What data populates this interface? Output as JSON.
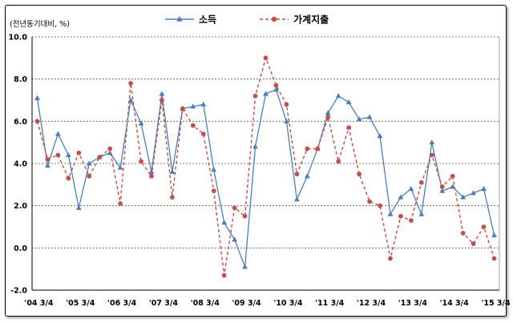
{
  "chart_data": {
    "type": "line",
    "unit_label": "(전년동기대비, %)",
    "ylim": [
      -2.0,
      10.0
    ],
    "y_ticks": [
      "10.0",
      "8.0",
      "6.0",
      "4.0",
      "2.0",
      "0.0",
      "-2.0"
    ],
    "y_tick_values": [
      10,
      8,
      6,
      4,
      2,
      0,
      -2
    ],
    "grid": true,
    "legend_position": "top",
    "x_tick_labels": [
      "'04 3/4",
      "'05 3/4",
      "'06 3/4",
      "'07 3/4",
      "'08 3/4",
      "'09 3/4",
      "'10 3/4",
      "'11 3/4",
      "'12 3/4",
      "'13 3/4",
      "'14 3/4",
      "'15 3/4"
    ],
    "x_tick_indices": [
      0,
      4,
      8,
      12,
      16,
      20,
      24,
      28,
      32,
      36,
      40,
      44
    ],
    "num_points": 45,
    "series": [
      {
        "name": "소득",
        "color": "#4a7ebb",
        "marker": "triangle",
        "line_style": "solid",
        "values": [
          7.1,
          3.9,
          5.4,
          4.4,
          1.9,
          4.0,
          4.3,
          4.5,
          3.8,
          7.0,
          5.9,
          3.6,
          7.3,
          3.6,
          6.6,
          6.7,
          6.8,
          3.7,
          1.2,
          0.4,
          -0.9,
          4.8,
          7.3,
          7.5,
          6.0,
          2.3,
          3.4,
          4.7,
          6.4,
          7.2,
          6.9,
          6.1,
          6.2,
          5.3,
          1.6,
          2.4,
          2.8,
          1.6,
          5.0,
          2.7,
          2.9,
          2.4,
          2.6,
          2.8,
          0.6
        ]
      },
      {
        "name": "가계지출",
        "color": "#c0504d",
        "marker": "circle",
        "line_style": "dashed",
        "values": [
          6.0,
          4.2,
          4.4,
          3.3,
          4.5,
          3.4,
          4.3,
          4.7,
          2.1,
          7.8,
          4.1,
          3.4,
          7.0,
          2.4,
          6.6,
          5.8,
          5.4,
          2.7,
          -1.3,
          1.9,
          1.5,
          7.2,
          9.0,
          7.7,
          6.8,
          3.5,
          4.7,
          4.7,
          6.2,
          4.1,
          5.7,
          3.5,
          2.2,
          2.0,
          -0.5,
          1.5,
          1.3,
          3.1,
          4.4,
          2.9,
          3.4,
          0.7,
          0.2,
          1.0,
          -0.5
        ]
      }
    ]
  }
}
